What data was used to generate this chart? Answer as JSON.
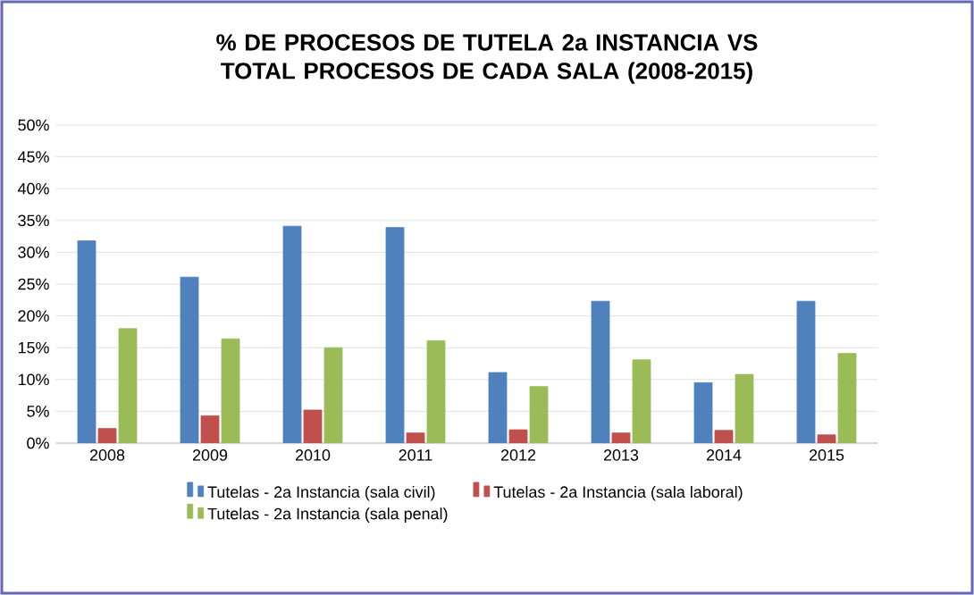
{
  "chart_data": {
    "type": "bar",
    "title": "% DE PROCESOS DE TUTELA 2a INSTANCIA VS TOTAL PROCESOS DE CADA SALA (2008-2015)",
    "categories": [
      "2008",
      "2009",
      "2010",
      "2011",
      "2012",
      "2013",
      "2014",
      "2015"
    ],
    "series": [
      {
        "name": "Tutelas - 2a Instancia (sala civil)",
        "color": "#4f81bd",
        "values": [
          31.8,
          26.1,
          34.1,
          33.9,
          11.1,
          22.3,
          9.5,
          22.3
        ]
      },
      {
        "name": "Tutelas - 2a Instancia (sala laboral)",
        "color": "#c0504d",
        "values": [
          2.3,
          4.3,
          5.2,
          1.6,
          2.1,
          1.6,
          2.0,
          1.3
        ]
      },
      {
        "name": "Tutelas - 2a Instancia (sala penal)",
        "color": "#9bbb59",
        "values": [
          18.0,
          16.4,
          15.0,
          16.1,
          8.9,
          13.1,
          10.8,
          14.1
        ]
      }
    ],
    "ylim": [
      0,
      50
    ],
    "yticks": [
      {
        "value": 0,
        "label": "0%"
      },
      {
        "value": 5,
        "label": "5%"
      },
      {
        "value": 10,
        "label": "10%"
      },
      {
        "value": 15,
        "label": "15%"
      },
      {
        "value": 20,
        "label": "20%"
      },
      {
        "value": 25,
        "label": "25%"
      },
      {
        "value": 30,
        "label": "30%"
      },
      {
        "value": 35,
        "label": "35%"
      },
      {
        "value": 40,
        "label": "40%"
      },
      {
        "value": 45,
        "label": "45%"
      },
      {
        "value": 50,
        "label": "50%"
      }
    ],
    "grid": "y",
    "legend": "bottom"
  }
}
